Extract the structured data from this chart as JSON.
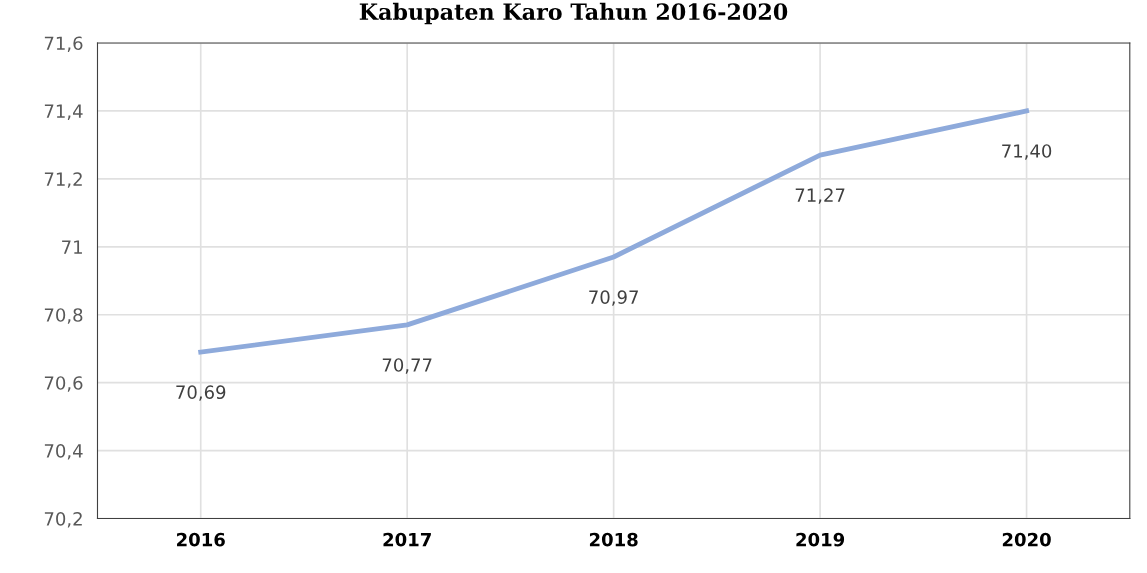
{
  "chart_data": {
    "type": "line",
    "title": "Kabupaten Karo Tahun 2016-2020",
    "categories": [
      "2016",
      "2017",
      "2018",
      "2019",
      "2020"
    ],
    "series": [
      {
        "color": "#8eaadb",
        "values": [
          70.69,
          70.77,
          70.97,
          71.27,
          71.4
        ],
        "value_labels": [
          "70,69",
          "70,77",
          "70,97",
          "71,27",
          "71,40"
        ]
      }
    ],
    "ylim": [
      70.2,
      71.6
    ],
    "yticks": [
      {
        "value": 70.2,
        "label": "70,2"
      },
      {
        "value": 70.4,
        "label": "70,4"
      },
      {
        "value": 70.6,
        "label": "70,6"
      },
      {
        "value": 70.8,
        "label": "70,8"
      },
      {
        "value": 71,
        "label": "71"
      },
      {
        "value": 71.2,
        "label": "71,2"
      },
      {
        "value": 71.4,
        "label": "71,4"
      },
      {
        "value": 71.6,
        "label": "71,6"
      }
    ],
    "grid": true,
    "marker": "none",
    "line_style": "solid"
  }
}
